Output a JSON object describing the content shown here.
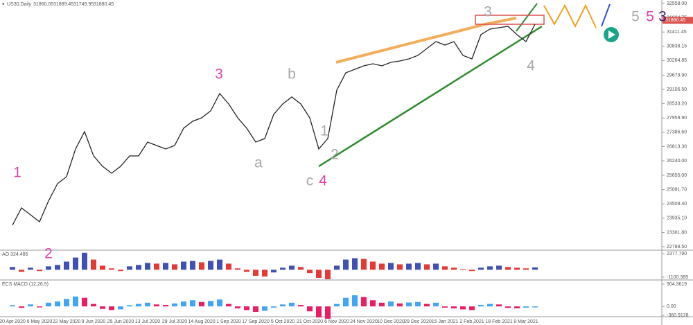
{
  "header": {
    "symbol": "US30,Daily",
    "ohlc": [
      31860.05,
      31889.45,
      31749.95,
      31880.45
    ]
  },
  "chart_data": [
    {
      "type": "line",
      "color": "#222222",
      "categories": [
        "20 Apr 2020",
        null,
        null,
        "6 May 2020",
        null,
        null,
        "22 May 2020",
        null,
        null,
        "9 Jun 2020",
        null,
        null,
        "25 Jun 2020",
        null,
        null,
        "13 Jul 2020",
        null,
        null,
        "29 Jul 2020",
        null,
        null,
        "14 Aug 2020",
        null,
        null,
        "1 Sep 2020",
        null,
        null,
        "17 Sep 2020",
        null,
        null,
        "5 Oct 2020",
        null,
        null,
        "21 Oct 2020",
        null,
        null,
        "6 Nov 2020",
        null,
        null,
        "24 Nov 2020",
        null,
        null,
        "10 Dec 2020",
        null,
        null,
        "29 Dec 2020",
        null,
        null,
        "15 Jan 2021",
        null,
        null,
        "2 Feb 2021",
        null,
        null,
        "18 Feb 2021",
        null,
        null,
        "8 Mar 2021",
        null
      ],
      "values": [
        23652,
        24348,
        24070,
        23791,
        24627,
        25322,
        25600,
        26714,
        27410,
        26436,
        26018,
        25740,
        26018,
        26436,
        26436,
        26992,
        26853,
        26714,
        26853,
        27549,
        27827,
        27966,
        28244,
        28940,
        28523,
        27966,
        27549,
        26992,
        27131,
        28105,
        28523,
        28801,
        28523,
        27966,
        26714,
        27131,
        29079,
        29775,
        29914,
        30053,
        30137,
        30053,
        30192,
        30248,
        30332,
        30471,
        30749,
        31027,
        30888,
        31027,
        30471,
        30332,
        31306,
        31528,
        31584,
        31640,
        31306,
        31027,
        31723
      ],
      "ylim": [
        22678,
        32697
      ],
      "yticks": [
        {
          "value": 32558,
          "label": "32558.00"
        },
        {
          "value": 31984.75,
          "label": "31984.75"
        },
        {
          "value": 31411.45,
          "label": "31411.45"
        },
        {
          "value": 30838.15,
          "label": "30838.15"
        },
        {
          "value": 30264.85,
          "label": "30264.85"
        },
        {
          "value": 29679.9,
          "label": "29679.90"
        },
        {
          "value": 29106.5,
          "label": "29106.50"
        },
        {
          "value": 28533.2,
          "label": "28533.20"
        },
        {
          "value": 27959.9,
          "label": "27959.90"
        },
        {
          "value": 27386.6,
          "label": "27386.60"
        },
        {
          "value": 26813.3,
          "label": "26813.30"
        },
        {
          "value": 26240,
          "label": "26240.00"
        },
        {
          "value": 25655,
          "label": "25655.00"
        },
        {
          "value": 25081.7,
          "label": "25081.70"
        },
        {
          "value": 24508.4,
          "label": "24508.40"
        },
        {
          "value": 23935.1,
          "label": "23935.10"
        },
        {
          "value": 23361.8,
          "label": "23361.80"
        },
        {
          "value": 22788.5,
          "label": "22788.50"
        }
      ],
      "current_price": {
        "value": 31880.45,
        "label": "31880.45"
      },
      "annotations": [
        {
          "text": "1",
          "color": "#e040a8"
        },
        {
          "text": "2",
          "color": "#e040a8"
        },
        {
          "text": "3",
          "color": "#e040a8"
        },
        {
          "text": "a",
          "color": "#a8a8a8"
        },
        {
          "text": "b",
          "color": "#a8a8a8"
        },
        {
          "text": "c",
          "color": "#a8a8a8"
        },
        {
          "text": "4",
          "color": "#e040a8"
        },
        {
          "text": "1",
          "color": "#a8a8a8"
        },
        {
          "text": "2",
          "color": "#a8a8a8"
        },
        {
          "text": "3",
          "color": "#a8a8a8"
        },
        {
          "text": "4",
          "color": "#a8a8a8"
        },
        {
          "text": "5",
          "color": "#a8a8a8"
        },
        {
          "text": "5",
          "color": "#e040a8"
        },
        {
          "text": "3",
          "color": "#3a1f6b"
        }
      ]
    },
    {
      "type": "bar",
      "title": "AO 324.485",
      "up_color": "#3f51b5",
      "down_color": "#e53935",
      "values": [
        400,
        -300,
        300,
        -200,
        500,
        700,
        1200,
        1800,
        2500,
        1500,
        600,
        200,
        -200,
        500,
        700,
        1000,
        900,
        1000,
        800,
        1200,
        1300,
        1100,
        1300,
        1500,
        900,
        200,
        -300,
        -900,
        -1000,
        -400,
        300,
        600,
        400,
        -500,
        -1200,
        -1400,
        600,
        1500,
        1700,
        1600,
        1200,
        900,
        1000,
        800,
        900,
        1000,
        800,
        900,
        500,
        300,
        100,
        -200,
        300,
        500,
        600,
        400,
        300,
        200,
        350
      ],
      "ylim": [
        -1509,
        2787
      ],
      "yticks": [
        {
          "value": 2377.79,
          "label": "2377.790"
        },
        {
          "value": -1100.389,
          "label": "-1100.389"
        }
      ]
    },
    {
      "type": "bar",
      "title": "ECS MACD (12,26,9)",
      "up_color": "#42a5f5",
      "down_color": "#e91e63",
      "values": [
        50,
        -60,
        80,
        -40,
        150,
        200,
        300,
        400,
        350,
        100,
        -100,
        -150,
        -120,
        50,
        100,
        150,
        80,
        60,
        120,
        200,
        250,
        180,
        220,
        280,
        100,
        -80,
        -150,
        -220,
        -180,
        -50,
        80,
        150,
        60,
        -200,
        -450,
        -500,
        100,
        350,
        450,
        380,
        250,
        150,
        200,
        120,
        160,
        180,
        100,
        150,
        -50,
        -80,
        -120,
        -150,
        60,
        100,
        80,
        -60,
        -80,
        -50,
        -40
      ],
      "ylim": [
        -445,
        1044
      ],
      "yticks": [
        {
          "value": 904.3619,
          "label": "904.3619"
        },
        {
          "value": 0,
          "label": "0.00"
        },
        {
          "value": -360.9128,
          "label": "-360.9128"
        }
      ]
    }
  ]
}
